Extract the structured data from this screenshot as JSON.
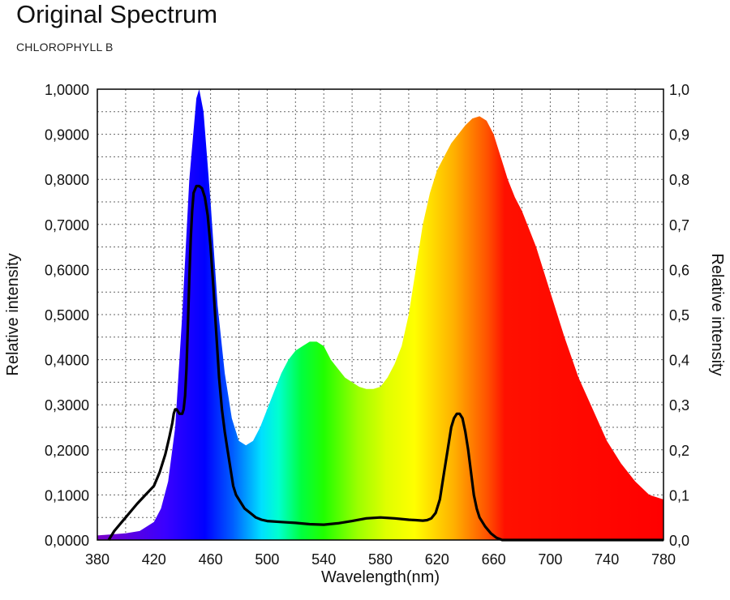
{
  "header": {
    "title": "Original Spectrum",
    "subtitle": "CHLOROPHYLL B"
  },
  "chart_data": {
    "type": "area",
    "xlabel": "Wavelength(nm)",
    "ylabel_left": "Relative intensity",
    "ylabel_right": "Relative intensity",
    "xlim": [
      380,
      780
    ],
    "ylim": [
      0,
      1
    ],
    "grid": true,
    "x_ticks": [
      "380",
      "420",
      "460",
      "500",
      "540",
      "580",
      "620",
      "660",
      "700",
      "740",
      "780"
    ],
    "y_ticks_left": [
      "0,0000",
      "0,1000",
      "0,2000",
      "0,3000",
      "0,4000",
      "0,5000",
      "0,6000",
      "0,7000",
      "0,8000",
      "0,9000",
      "1,0000"
    ],
    "y_ticks_right": [
      "0,0",
      "0,1",
      "0,2",
      "0,3",
      "0,4",
      "0,5",
      "0,6",
      "0,7",
      "0,8",
      "0,9",
      "1,0"
    ],
    "series": [
      {
        "style": "spectrum-fill",
        "x": [
          380,
          400,
          410,
          420,
          425,
          430,
          435,
          440,
          445,
          450,
          452,
          455,
          460,
          465,
          470,
          475,
          480,
          485,
          490,
          495,
          500,
          505,
          510,
          515,
          520,
          525,
          530,
          535,
          540,
          545,
          550,
          555,
          560,
          565,
          570,
          575,
          580,
          585,
          590,
          595,
          600,
          605,
          610,
          615,
          620,
          625,
          630,
          635,
          640,
          645,
          650,
          655,
          660,
          665,
          670,
          675,
          680,
          690,
          700,
          710,
          720,
          730,
          740,
          750,
          760,
          770,
          780
        ],
        "y": [
          0.01,
          0.015,
          0.02,
          0.04,
          0.07,
          0.13,
          0.25,
          0.5,
          0.8,
          0.98,
          1.0,
          0.95,
          0.75,
          0.52,
          0.37,
          0.27,
          0.22,
          0.21,
          0.22,
          0.25,
          0.29,
          0.33,
          0.37,
          0.4,
          0.42,
          0.43,
          0.44,
          0.44,
          0.43,
          0.4,
          0.38,
          0.36,
          0.35,
          0.34,
          0.335,
          0.335,
          0.34,
          0.36,
          0.39,
          0.43,
          0.5,
          0.6,
          0.7,
          0.77,
          0.82,
          0.85,
          0.88,
          0.9,
          0.92,
          0.935,
          0.94,
          0.93,
          0.9,
          0.85,
          0.8,
          0.76,
          0.73,
          0.65,
          0.55,
          0.45,
          0.36,
          0.29,
          0.22,
          0.17,
          0.13,
          0.1,
          0.09
        ]
      },
      {
        "style": "black-line",
        "x": [
          388,
          392,
          400,
          408,
          414,
          420,
          424,
          428,
          431,
          433,
          434,
          435,
          436,
          438,
          440,
          441,
          442,
          443,
          444,
          445,
          446,
          447,
          448,
          450,
          452,
          454,
          456,
          458,
          460,
          462,
          464,
          466,
          468,
          470,
          472,
          474,
          476,
          478,
          480,
          484,
          488,
          492,
          496,
          500,
          510,
          520,
          530,
          540,
          550,
          560,
          570,
          580,
          590,
          600,
          605,
          610,
          613,
          616,
          619,
          622,
          625,
          628,
          630,
          632,
          634,
          636,
          638,
          640,
          642,
          644,
          646,
          648,
          650,
          654,
          658,
          662,
          666,
          670,
          675,
          680,
          690,
          700,
          720,
          740,
          760,
          780
        ],
        "y": [
          0.0,
          0.02,
          0.05,
          0.08,
          0.1,
          0.12,
          0.15,
          0.19,
          0.23,
          0.26,
          0.28,
          0.29,
          0.29,
          0.28,
          0.28,
          0.29,
          0.32,
          0.38,
          0.48,
          0.58,
          0.67,
          0.73,
          0.77,
          0.785,
          0.785,
          0.78,
          0.76,
          0.72,
          0.65,
          0.56,
          0.46,
          0.36,
          0.29,
          0.24,
          0.2,
          0.16,
          0.12,
          0.1,
          0.09,
          0.07,
          0.06,
          0.05,
          0.045,
          0.042,
          0.04,
          0.038,
          0.035,
          0.034,
          0.037,
          0.042,
          0.048,
          0.05,
          0.048,
          0.045,
          0.044,
          0.043,
          0.044,
          0.048,
          0.06,
          0.09,
          0.15,
          0.21,
          0.25,
          0.27,
          0.28,
          0.28,
          0.27,
          0.24,
          0.2,
          0.15,
          0.1,
          0.07,
          0.05,
          0.03,
          0.015,
          0.005,
          0.0,
          0.0,
          0.0,
          0.0,
          0.0,
          0.0,
          0.0,
          0.0,
          0.0,
          0.0
        ]
      }
    ]
  }
}
